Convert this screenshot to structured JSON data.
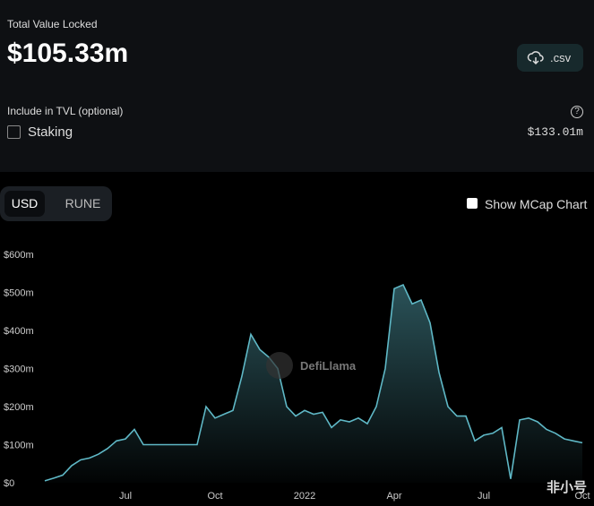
{
  "header": {
    "label": "Total Value Locked",
    "value": "$105.33m",
    "download": ".csv"
  },
  "include": {
    "label": "Include in TVL (optional)",
    "option": "Staking",
    "option_value": "$133.01m"
  },
  "toggle": {
    "options": [
      "USD",
      "RUNE"
    ],
    "checkbox": "Show MCap Chart"
  },
  "watermarks": [
    "DefiLlama",
    "非小号"
  ],
  "chart_data": {
    "type": "area",
    "color": "#5fb8c6",
    "grid": false,
    "categories": [
      null,
      null,
      null,
      null,
      null,
      null,
      null,
      null,
      null,
      "Jul",
      null,
      null,
      null,
      null,
      null,
      null,
      null,
      null,
      null,
      "Oct",
      null,
      null,
      null,
      null,
      null,
      null,
      null,
      null,
      null,
      "2022",
      null,
      null,
      null,
      null,
      null,
      null,
      null,
      null,
      null,
      "Apr",
      null,
      null,
      null,
      null,
      null,
      null,
      null,
      null,
      null,
      "Jul",
      null,
      null,
      null,
      null,
      null,
      null,
      null,
      null,
      null,
      null,
      "Oct"
    ],
    "values": [
      5,
      12,
      20,
      45,
      60,
      65,
      75,
      90,
      110,
      115,
      140,
      100,
      100,
      100,
      100,
      100,
      100,
      100,
      200,
      170,
      180,
      190,
      280,
      390,
      350,
      330,
      300,
      200,
      175,
      190,
      180,
      185,
      145,
      165,
      160,
      170,
      155,
      200,
      300,
      510,
      520,
      470,
      480,
      420,
      290,
      200,
      175,
      175,
      110,
      125,
      130,
      145,
      10,
      165,
      170,
      160,
      140,
      130,
      115,
      110,
      105
    ],
    "ylim": [
      0,
      600
    ],
    "yticks": [
      {
        "value": 0,
        "label": "$0"
      },
      {
        "value": 100,
        "label": "$100m"
      },
      {
        "value": 200,
        "label": "$200m"
      },
      {
        "value": 300,
        "label": "$300m"
      },
      {
        "value": 400,
        "label": "$400m"
      },
      {
        "value": 500,
        "label": "$500m"
      },
      {
        "value": 600,
        "label": "$600m"
      }
    ]
  }
}
